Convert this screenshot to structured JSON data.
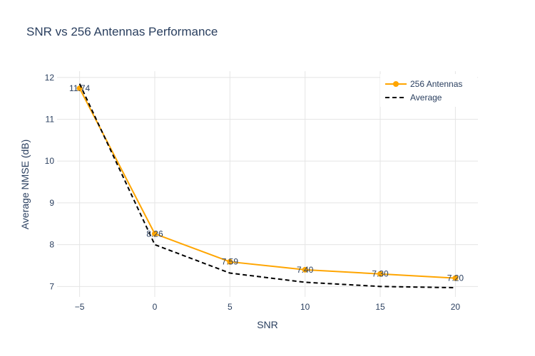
{
  "chart_data": {
    "type": "line",
    "title": "SNR vs 256 Antennas Performance",
    "xlabel": "SNR",
    "ylabel": "Average NMSE (dB)",
    "xlim": [
      -6.5,
      21.5
    ],
    "ylim": [
      6.75,
      12.15
    ],
    "x_ticks": [
      -5,
      0,
      5,
      10,
      15,
      20
    ],
    "x_tick_labels": [
      "−5",
      "0",
      "5",
      "10",
      "15",
      "20"
    ],
    "y_ticks": [
      7,
      8,
      9,
      10,
      11,
      12
    ],
    "grid": true,
    "legend_position": "top-right",
    "series": [
      {
        "name": "256 Antennas",
        "color": "#FFA500",
        "style": "solid",
        "markers": true,
        "x": [
          -5,
          0,
          5,
          10,
          15,
          20
        ],
        "y": [
          11.74,
          8.26,
          7.59,
          7.4,
          7.3,
          7.2
        ],
        "labels": [
          "11.74",
          "8.26",
          "7.59",
          "7.40",
          "7.30",
          "7.20"
        ]
      },
      {
        "name": "Average",
        "color": "#000000",
        "style": "dashed",
        "markers": false,
        "x": [
          -5,
          0,
          5,
          10,
          15,
          20
        ],
        "y": [
          11.85,
          8.0,
          7.32,
          7.1,
          7.0,
          6.97
        ]
      }
    ]
  }
}
